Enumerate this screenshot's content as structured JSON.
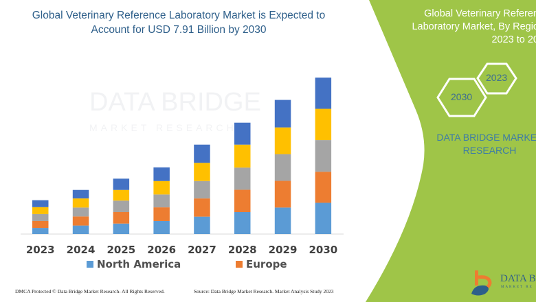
{
  "header": {
    "title_line1": "Global Veterinary Reference Laboratory Market is Expected to",
    "title_line2": "Account for USD 7.91 Billion by 2030"
  },
  "side_panel": {
    "title_line1": "Global Veterinary Referen",
    "title_line2": "Laboratory Market, By Regio",
    "title_line3": "2023 to 20",
    "hex_years": [
      "2023",
      "2030"
    ],
    "brand_line1": "DATA BRIDGE MARKET",
    "brand_line2": "RESEARCH",
    "logo_text": "DATA BR",
    "logo_sub": "MARKET RE",
    "color": "#9fc548"
  },
  "watermark": {
    "line1": "DATA BRIDGE",
    "line2": "MARKET RESEARCH"
  },
  "chart_data": {
    "type": "bar",
    "stacked": true,
    "title": "Global Veterinary Reference Laboratory Market is Expected to Account for USD 7.91 Billion by 2030",
    "categories": [
      "2023",
      "2024",
      "2025",
      "2026",
      "2027",
      "2028",
      "2029",
      "2030"
    ],
    "unit": "USD Billion",
    "ylim": [
      0,
      8
    ],
    "grid": false,
    "legend_position": "bottom",
    "series": [
      {
        "name": "North America",
        "color": "#5b9bd5",
        "values": [
          0.31,
          0.43,
          0.53,
          0.66,
          0.88,
          1.11,
          1.34,
          1.58
        ]
      },
      {
        "name": "Europe",
        "color": "#ed7d31",
        "values": [
          0.35,
          0.46,
          0.58,
          0.69,
          0.92,
          1.13,
          1.35,
          1.57
        ]
      },
      {
        "color": "#a5a5a5",
        "values": [
          0.35,
          0.45,
          0.58,
          0.65,
          0.88,
          1.12,
          1.35,
          1.6
        ]
      },
      {
        "color": "#ffc000",
        "values": [
          0.35,
          0.46,
          0.54,
          0.68,
          0.92,
          1.16,
          1.35,
          1.58
        ]
      },
      {
        "color": "#4472c4",
        "values": [
          0.35,
          0.43,
          0.57,
          0.69,
          0.92,
          1.11,
          1.39,
          1.58
        ]
      }
    ]
  },
  "footer": {
    "left": "DMCA Protected © Data Bridge Market Research-  All Rights Reserved.",
    "right": "Source: Data Bridge Market Research. Market Analysis Study 2023"
  }
}
